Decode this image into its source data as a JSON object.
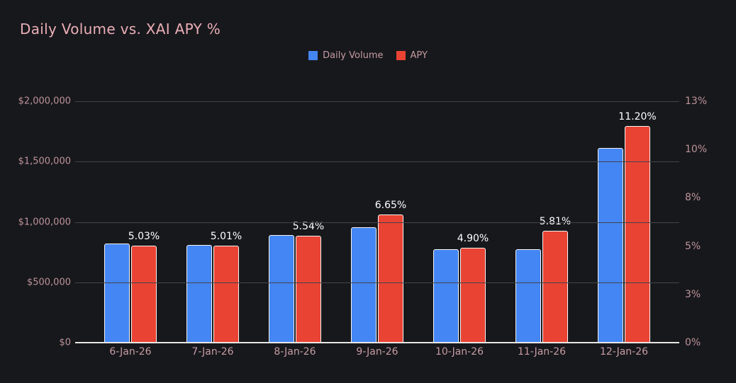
{
  "page": {
    "background": "#17181c"
  },
  "header": {
    "title": "Daily Volume vs. XAI APY %"
  },
  "legend": {
    "items": [
      {
        "label": "Daily Volume",
        "color": "#4486f3"
      },
      {
        "label": "APY",
        "color": "#e94334"
      }
    ]
  },
  "chart_data": {
    "type": "bar",
    "title": "Daily Volume vs. XAI APY %",
    "categories": [
      "6-Jan-26",
      "7-Jan-26",
      "8-Jan-26",
      "9-Jan-26",
      "10-Jan-26",
      "11-Jan-26",
      "12-Jan-26"
    ],
    "series": [
      {
        "name": "Daily Volume",
        "axis": "left",
        "color": "#4486f3",
        "values": [
          820000,
          811000,
          893000,
          957000,
          772000,
          776000,
          1612000
        ]
      },
      {
        "name": "APY",
        "axis": "right",
        "color": "#e94334",
        "values": [
          5.03,
          5.01,
          5.54,
          6.65,
          4.9,
          5.81,
          11.2
        ],
        "point_labels": [
          "5.03%",
          "5.01%",
          "5.54%",
          "6.65%",
          "4.90%",
          "5.81%",
          "11.20%"
        ]
      }
    ],
    "left_axis": {
      "ticks": [
        "$0",
        "$500,000",
        "$1,000,000",
        "$1,500,000",
        "$2,000,000"
      ],
      "range": [
        0,
        2000000
      ]
    },
    "right_axis": {
      "ticks": [
        "0%",
        "3%",
        "5%",
        "8%",
        "10%",
        "13%"
      ],
      "range": [
        0,
        12.5
      ]
    },
    "grid": "horizontal",
    "legend_position": "top",
    "point_label_color": "#ffffff",
    "grid_color": "#43444a",
    "axis_line_color": "#e9e7e4"
  }
}
